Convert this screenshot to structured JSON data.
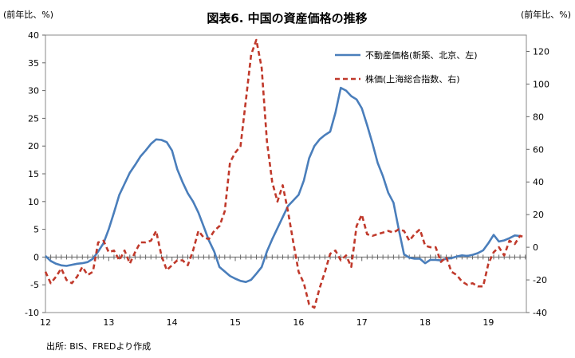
{
  "chart_data": {
    "type": "line",
    "title": "図表6. 中国の資産価格の推移",
    "left_axis_unit": "(前年比、%)",
    "right_axis_unit": "(前年比、%)",
    "source": "出所: BIS、FREDより作成",
    "x_tick_labels": [
      "12",
      "13",
      "14",
      "15",
      "16",
      "17",
      "18",
      "19"
    ],
    "x_range": [
      2012.0,
      2019.6
    ],
    "y_left": {
      "range": [
        -10,
        40
      ],
      "ticks": [
        "-10",
        "-5",
        "0",
        "5",
        "10",
        "15",
        "20",
        "25",
        "30",
        "35",
        "40"
      ]
    },
    "y_right": {
      "range": [
        -40,
        130
      ],
      "ticks": [
        "-40",
        "-20",
        "0",
        "20",
        "40",
        "60",
        "80",
        "100",
        "120"
      ]
    },
    "legend_position": "top-right",
    "series": [
      {
        "name": "不動産価格(新築、北京、左)",
        "axis": "left",
        "color": "#4a7ebb",
        "style": "solid",
        "x": [
          2012.0,
          2012.083,
          2012.167,
          2012.25,
          2012.333,
          2012.417,
          2012.5,
          2012.583,
          2012.667,
          2012.75,
          2012.833,
          2012.917,
          2013.0,
          2013.083,
          2013.167,
          2013.25,
          2013.333,
          2013.417,
          2013.5,
          2013.583,
          2013.667,
          2013.75,
          2013.833,
          2013.917,
          2014.0,
          2014.083,
          2014.167,
          2014.25,
          2014.333,
          2014.417,
          2014.5,
          2014.583,
          2014.667,
          2014.75,
          2014.833,
          2014.917,
          2015.0,
          2015.083,
          2015.167,
          2015.25,
          2015.333,
          2015.417,
          2015.5,
          2015.583,
          2015.667,
          2015.75,
          2015.833,
          2015.917,
          2016.0,
          2016.083,
          2016.167,
          2016.25,
          2016.333,
          2016.417,
          2016.5,
          2016.583,
          2016.667,
          2016.75,
          2016.833,
          2016.917,
          2017.0,
          2017.083,
          2017.167,
          2017.25,
          2017.333,
          2017.417,
          2017.5,
          2017.583,
          2017.667,
          2017.75,
          2017.833,
          2017.917,
          2018.0,
          2018.083,
          2018.167,
          2018.25,
          2018.333,
          2018.417,
          2018.5,
          2018.583,
          2018.667,
          2018.75,
          2018.833,
          2018.917,
          2019.0,
          2019.083,
          2019.167,
          2019.25,
          2019.333,
          2019.417,
          2019.5
        ],
        "values": [
          0.2,
          -0.7,
          -1.2,
          -1.5,
          -1.6,
          -1.4,
          -1.2,
          -1.1,
          -0.9,
          -0.3,
          1.0,
          2.5,
          5.0,
          8.0,
          11.2,
          13.2,
          15.2,
          16.6,
          18.1,
          19.2,
          20.4,
          21.2,
          21.1,
          20.7,
          19.2,
          15.8,
          13.5,
          11.5,
          10.0,
          8.0,
          5.5,
          3.0,
          1.0,
          -1.8,
          -2.6,
          -3.4,
          -3.9,
          -4.3,
          -4.5,
          -4.1,
          -3.0,
          -1.8,
          1.0,
          3.2,
          5.2,
          7.2,
          9.2,
          10.2,
          11.2,
          13.8,
          17.8,
          20.0,
          21.2,
          22.0,
          22.6,
          26.0,
          30.5,
          30.0,
          29.0,
          28.4,
          26.8,
          23.8,
          20.5,
          17.0,
          14.6,
          11.6,
          9.8,
          5.0,
          0.5,
          -0.1,
          -0.3,
          -0.3,
          -1.1,
          -0.5,
          -0.5,
          -0.6,
          -0.3,
          -0.2,
          0.1,
          0.3,
          0.2,
          0.4,
          0.7,
          1.2,
          2.5,
          4.0,
          2.8,
          3.0,
          3.4,
          3.9,
          3.8
        ]
      },
      {
        "name": "株価(上海総合指数、右)",
        "axis": "right",
        "color": "#c0392b",
        "style": "dashed",
        "x": [
          2012.0,
          2012.083,
          2012.167,
          2012.25,
          2012.333,
          2012.417,
          2012.5,
          2012.583,
          2012.667,
          2012.75,
          2012.833,
          2012.917,
          2013.0,
          2013.083,
          2013.167,
          2013.25,
          2013.333,
          2013.417,
          2013.5,
          2013.583,
          2013.667,
          2013.75,
          2013.833,
          2013.917,
          2014.0,
          2014.083,
          2014.167,
          2014.25,
          2014.333,
          2014.417,
          2014.5,
          2014.583,
          2014.667,
          2014.75,
          2014.833,
          2014.917,
          2015.0,
          2015.083,
          2015.167,
          2015.25,
          2015.333,
          2015.417,
          2015.5,
          2015.583,
          2015.667,
          2015.75,
          2015.833,
          2015.917,
          2016.0,
          2016.083,
          2016.167,
          2016.25,
          2016.333,
          2016.417,
          2016.5,
          2016.583,
          2016.667,
          2016.75,
          2016.833,
          2016.917,
          2017.0,
          2017.083,
          2017.167,
          2017.25,
          2017.333,
          2017.417,
          2017.5,
          2017.583,
          2017.667,
          2017.75,
          2017.833,
          2017.917,
          2018.0,
          2018.083,
          2018.167,
          2018.25,
          2018.333,
          2018.417,
          2018.5,
          2018.583,
          2018.667,
          2018.75,
          2018.833,
          2018.917,
          2019.0,
          2019.083,
          2019.167,
          2019.25,
          2019.333,
          2019.417,
          2019.5,
          2019.583
        ],
        "values": [
          -15,
          -22,
          -18,
          -13,
          -20,
          -22,
          -18,
          -12,
          -17,
          -15,
          3,
          4,
          -3,
          -2,
          -8,
          -2,
          -10,
          -3,
          3,
          3,
          4,
          10,
          -5,
          -14,
          -11,
          -8,
          -8,
          -11,
          -2,
          10,
          6,
          5,
          10,
          13,
          22,
          52,
          58,
          62,
          90,
          118,
          127,
          110,
          65,
          40,
          28,
          38,
          22,
          3,
          -15,
          -22,
          -35,
          -37,
          -25,
          -15,
          -4,
          -2,
          -8,
          -5,
          -12,
          13,
          20,
          8,
          7,
          8,
          9,
          10,
          9,
          11,
          10,
          4,
          8,
          11,
          1,
          0,
          0,
          -9,
          -6,
          -15,
          -17,
          -21,
          -23,
          -22,
          -24,
          -24,
          -10,
          -3,
          0,
          -5,
          4,
          2,
          7,
          6
        ]
      }
    ]
  }
}
